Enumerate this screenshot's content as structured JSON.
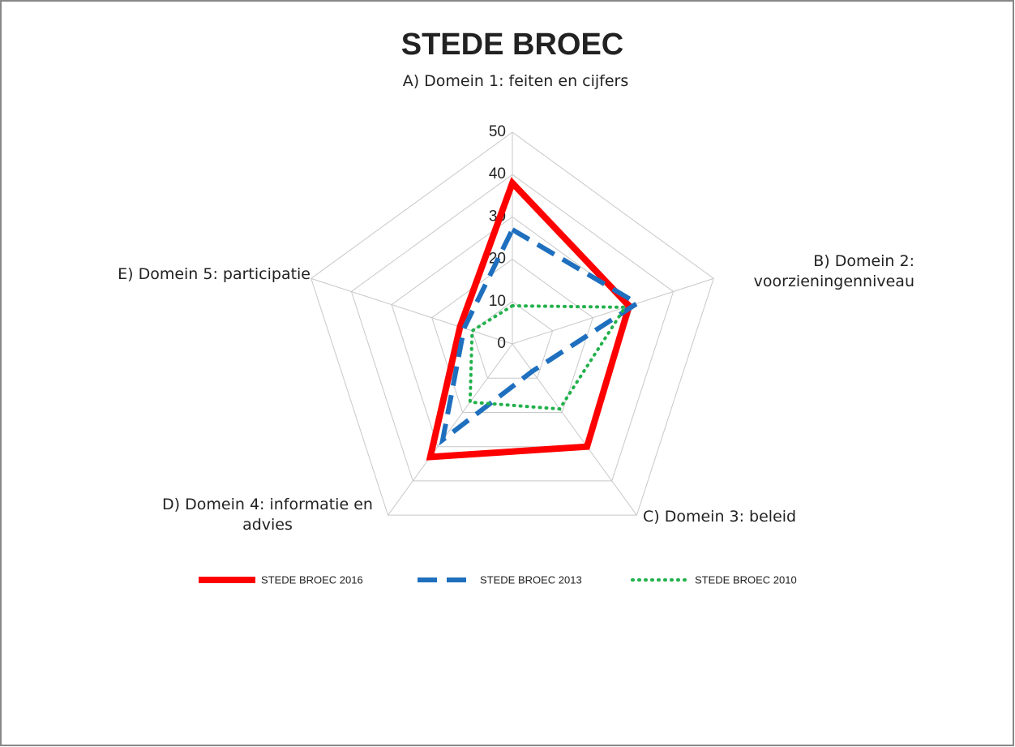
{
  "chart_data": {
    "type": "radar",
    "title": "STEDE BROEC",
    "categories": [
      "A) Domein 1: feiten en cijfers",
      "B) Domein 2: voorzieningenniveau",
      "C) Domein 3: beleid",
      "D) Domein 4: informatie en advies",
      "E) Domein 5: participatie"
    ],
    "series": [
      {
        "name": "STEDE BROEC 2016",
        "color": "#ff0000",
        "values": [
          38,
          29,
          30,
          33,
          13
        ]
      },
      {
        "name": "STEDE BROEC 2013",
        "color": "#1f6fbf",
        "values": [
          27,
          31,
          8,
          28,
          12
        ]
      },
      {
        "name": "STEDE BROEC 2010",
        "color": "#22b14c",
        "values": [
          9,
          28,
          19,
          17,
          10
        ]
      }
    ],
    "ylim": [
      0,
      50
    ],
    "yticks": [
      0,
      10,
      20,
      30,
      40,
      50
    ],
    "grid": true
  }
}
